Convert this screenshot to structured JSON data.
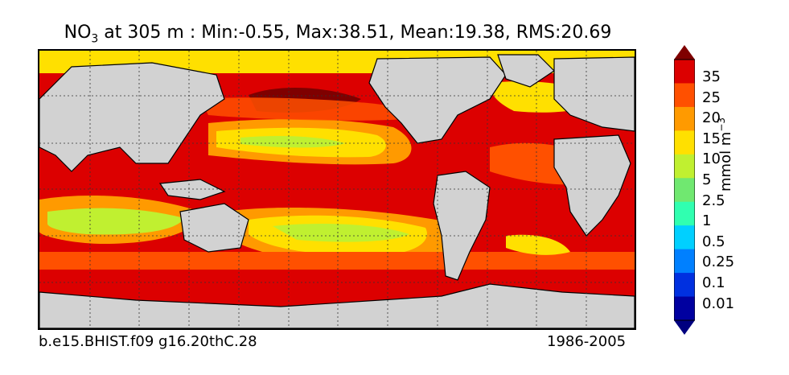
{
  "title": {
    "species": "NO",
    "species_sub": "3",
    "rest": " at 305 m : Min:-0.55, Max:38.51, Mean:19.38, RMS:20.69"
  },
  "footer": {
    "case": "b.e15.BHIST.f09 g16.20thC.28",
    "period": "1986-2005"
  },
  "colorbar": {
    "unit_main": "mmol m",
    "unit_exp": "−3",
    "levels": [
      "35",
      "25",
      "20",
      "15",
      "10",
      "5",
      "2.5",
      "1",
      "0.5",
      "0.25",
      "0.1",
      "0.01"
    ],
    "colors": [
      "#7f0000",
      "#dc0000",
      "#ff5000",
      "#ff9a00",
      "#ffe000",
      "#c0f030",
      "#70e870",
      "#30ffb0",
      "#00d0ff",
      "#0080ff",
      "#0030e0",
      "#0000a0",
      "#00007f"
    ]
  },
  "map_colors": {
    "land": "#d2d2d2",
    "ice": "#ffffff",
    "grid": "#333333"
  }
}
